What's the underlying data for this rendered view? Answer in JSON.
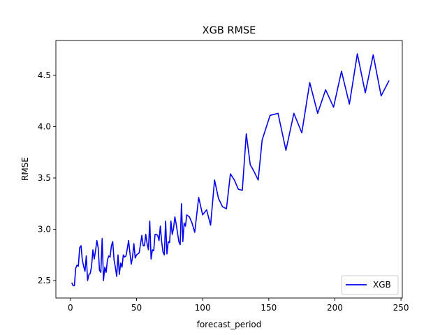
{
  "chart_data": {
    "type": "line",
    "title": "XGB RMSE",
    "xlabel": "forecast_period",
    "ylabel": "RMSE",
    "xlim": [
      -11,
      251
    ],
    "ylim": [
      2.33,
      4.84
    ],
    "xticks": [
      0,
      50,
      100,
      150,
      200,
      250
    ],
    "xtick_labels": [
      "0",
      "50",
      "100",
      "150",
      "200",
      "250"
    ],
    "yticks": [
      2.5,
      3.0,
      3.5,
      4.0,
      4.5
    ],
    "ytick_labels": [
      "2.5",
      "3.0",
      "3.5",
      "4.0",
      "4.5"
    ],
    "grid": false,
    "legend": {
      "position": "lower-right"
    },
    "series": [
      {
        "name": "XGB",
        "color": "#0000ee",
        "points": [
          [
            1,
            2.48
          ],
          [
            2,
            2.45
          ],
          [
            3,
            2.45
          ],
          [
            4,
            2.62
          ],
          [
            5,
            2.65
          ],
          [
            6,
            2.64
          ],
          [
            7,
            2.82
          ],
          [
            8,
            2.84
          ],
          [
            9,
            2.7
          ],
          [
            10,
            2.64
          ],
          [
            11,
            2.59
          ],
          [
            12,
            2.74
          ],
          [
            13,
            2.5
          ],
          [
            14,
            2.56
          ],
          [
            15,
            2.57
          ],
          [
            16,
            2.64
          ],
          [
            17,
            2.8
          ],
          [
            18,
            2.71
          ],
          [
            19,
            2.79
          ],
          [
            20,
            2.89
          ],
          [
            21,
            2.82
          ],
          [
            22,
            2.6
          ],
          [
            23,
            2.58
          ],
          [
            24,
            2.91
          ],
          [
            25,
            2.5
          ],
          [
            26,
            2.63
          ],
          [
            27,
            2.58
          ],
          [
            28,
            2.7
          ],
          [
            29,
            2.74
          ],
          [
            30,
            2.73
          ],
          [
            31,
            2.84
          ],
          [
            32,
            2.88
          ],
          [
            33,
            2.7
          ],
          [
            34,
            2.63
          ],
          [
            35,
            2.54
          ],
          [
            36,
            2.75
          ],
          [
            37,
            2.56
          ],
          [
            38,
            2.67
          ],
          [
            39,
            2.63
          ],
          [
            40,
            2.75
          ],
          [
            41,
            2.73
          ],
          [
            42,
            2.74
          ],
          [
            43,
            2.81
          ],
          [
            44,
            2.89
          ],
          [
            45,
            2.77
          ],
          [
            46,
            2.66
          ],
          [
            47,
            2.73
          ],
          [
            48,
            2.86
          ],
          [
            49,
            2.72
          ],
          [
            50,
            2.75
          ],
          [
            52,
            2.77
          ],
          [
            54,
            2.94
          ],
          [
            55,
            2.84
          ],
          [
            56,
            2.84
          ],
          [
            57,
            2.95
          ],
          [
            58,
            2.86
          ],
          [
            59,
            2.8
          ],
          [
            60,
            3.08
          ],
          [
            61,
            2.71
          ],
          [
            62,
            2.8
          ],
          [
            63,
            2.79
          ],
          [
            64,
            2.95
          ],
          [
            65,
            2.95
          ],
          [
            66,
            2.94
          ],
          [
            67,
            2.89
          ],
          [
            68,
            3.03
          ],
          [
            69,
            2.88
          ],
          [
            70,
            2.78
          ],
          [
            71,
            2.75
          ],
          [
            72,
            3.08
          ],
          [
            73,
            2.76
          ],
          [
            74,
            2.88
          ],
          [
            75,
            2.87
          ],
          [
            76,
            3.08
          ],
          [
            77,
            2.95
          ],
          [
            78,
            3.01
          ],
          [
            79,
            3.12
          ],
          [
            80,
            3.05
          ],
          [
            82,
            2.88
          ],
          [
            83,
            2.85
          ],
          [
            84,
            3.25
          ],
          [
            85,
            2.88
          ],
          [
            86,
            3.06
          ],
          [
            87,
            3.03
          ],
          [
            88,
            3.14
          ],
          [
            90,
            3.12
          ],
          [
            92,
            3.06
          ],
          [
            94,
            2.97
          ],
          [
            97,
            3.31
          ],
          [
            100,
            3.14
          ],
          [
            103,
            3.19
          ],
          [
            106,
            3.04
          ],
          [
            109,
            3.48
          ],
          [
            112,
            3.3
          ],
          [
            115,
            3.22
          ],
          [
            118,
            3.2
          ],
          [
            121,
            3.54
          ],
          [
            124,
            3.48
          ],
          [
            127,
            3.39
          ],
          [
            130,
            3.38
          ],
          [
            133,
            3.93
          ],
          [
            136,
            3.63
          ],
          [
            139,
            3.56
          ],
          [
            142,
            3.48
          ],
          [
            145,
            3.87
          ],
          [
            151,
            4.11
          ],
          [
            157,
            4.13
          ],
          [
            163,
            3.77
          ],
          [
            169,
            4.13
          ],
          [
            175,
            3.94
          ],
          [
            181,
            4.43
          ],
          [
            187,
            4.13
          ],
          [
            193,
            4.36
          ],
          [
            199,
            4.19
          ],
          [
            205,
            4.54
          ],
          [
            211,
            4.22
          ],
          [
            217,
            4.71
          ],
          [
            223,
            4.33
          ],
          [
            229,
            4.7
          ],
          [
            235,
            4.3
          ],
          [
            241,
            4.45
          ]
        ]
      }
    ]
  }
}
